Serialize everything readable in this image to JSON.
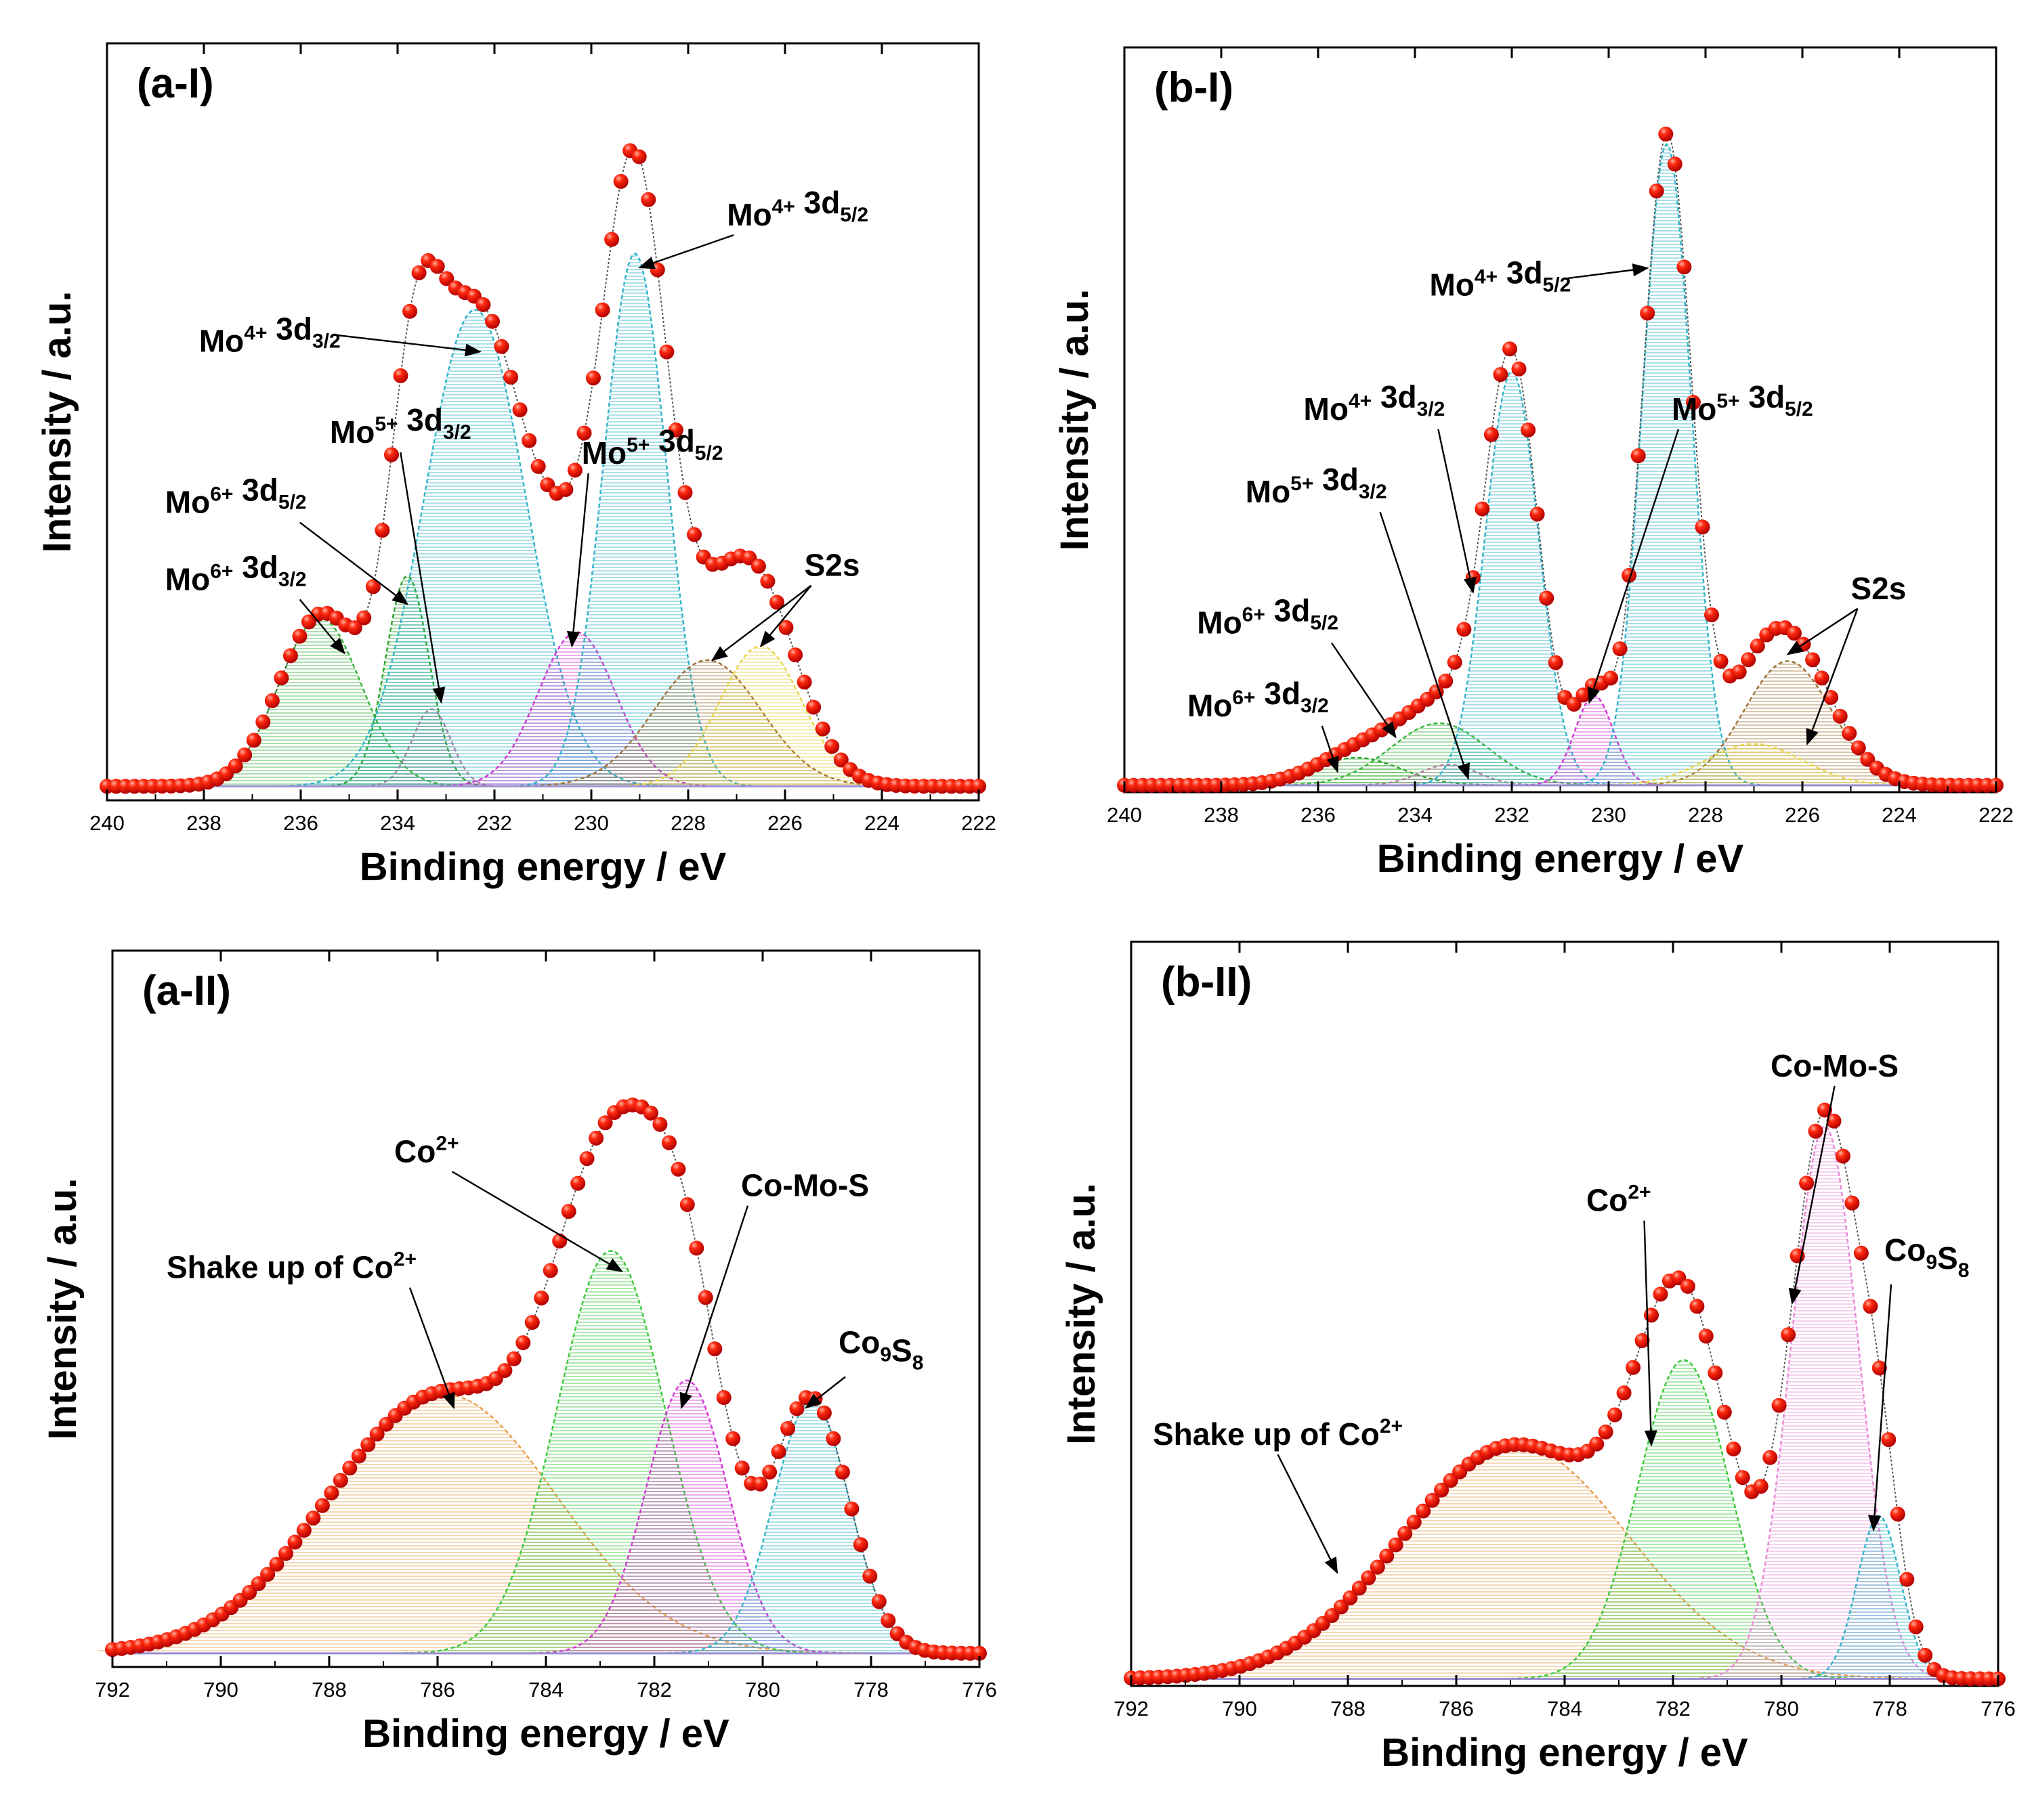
{
  "chart_data": [
    {
      "id": "a1",
      "type": "line",
      "panel_label": "(a-I)",
      "xlabel": "Binding energy / eV",
      "ylabel": "Intensity / a.u.",
      "xlim": [
        240,
        222
      ],
      "ylim": [
        0,
        1.08
      ],
      "xticks": [
        240,
        238,
        236,
        234,
        232,
        230,
        228,
        226,
        224,
        222
      ],
      "xtick_labels": [
        "240",
        "238",
        "236",
        "234",
        "232",
        "230",
        "228",
        "226",
        "224",
        "222"
      ],
      "baseline": 0.02,
      "components": [
        {
          "name": "Mo6+ 3d3/2",
          "center": 235.6,
          "height": 0.24,
          "width": 0.85,
          "color": "#3db53d"
        },
        {
          "name": "Mo6+ 3d5/2",
          "center": 233.8,
          "height": 0.3,
          "width": 0.45,
          "color": "#2fa52f"
        },
        {
          "name": "Mo5+ 3d3/2",
          "center": 233.3,
          "height": 0.11,
          "width": 0.4,
          "color": "#b080a0"
        },
        {
          "name": "Mo4+ 3d3/2",
          "center": 232.4,
          "height": 0.68,
          "width": 1.05,
          "color": "#33b5c8"
        },
        {
          "name": "Mo5+ 3d5/2",
          "center": 230.3,
          "height": 0.22,
          "width": 0.8,
          "color": "#d23ad2"
        },
        {
          "name": "Mo4+ 3d5/2",
          "center": 229.1,
          "height": 0.76,
          "width": 0.65,
          "color": "#33b5c8"
        },
        {
          "name": "S2s a",
          "center": 227.6,
          "height": 0.18,
          "width": 1.1,
          "color": "#a0743a"
        },
        {
          "name": "S2s b",
          "center": 226.5,
          "height": 0.2,
          "width": 0.85,
          "color": "#e8d44a"
        }
      ],
      "annotations": [
        {
          "base": "Mo",
          "sup": "4+",
          "mid": " 3d",
          "sub": "5/2",
          "text_xy": [
            227.2,
            0.82
          ],
          "arrow_to": [
            229.0,
            0.76
          ]
        },
        {
          "base": "Mo",
          "sup": "4+",
          "mid": " 3d",
          "sub": "3/2",
          "text_xy": [
            238.1,
            0.64
          ],
          "arrow_to": [
            232.3,
            0.64
          ]
        },
        {
          "base": "Mo",
          "sup": "5+",
          "mid": " 3d",
          "sub": "3/2",
          "text_xy": [
            235.4,
            0.51
          ],
          "arrow_to": [
            233.1,
            0.14
          ]
        },
        {
          "base": "Mo",
          "sup": "6+",
          "mid": " 3d",
          "sub": "5/2",
          "text_xy": [
            238.8,
            0.41
          ],
          "arrow_to": [
            233.8,
            0.28
          ]
        },
        {
          "base": "Mo",
          "sup": "6+",
          "mid": " 3d",
          "sub": "3/2",
          "text_xy": [
            238.8,
            0.3
          ],
          "arrow_to": [
            235.1,
            0.21
          ]
        },
        {
          "base": "Mo",
          "sup": "5+",
          "mid": " 3d",
          "sub": "5/2",
          "text_xy": [
            230.2,
            0.48
          ],
          "arrow_to": [
            230.4,
            0.22
          ]
        },
        {
          "base": "S2s",
          "sup": "",
          "mid": "",
          "sub": "",
          "text_xy": [
            225.6,
            0.32
          ],
          "arrow_to": [
            227.5,
            0.2
          ],
          "arrow_to2": [
            226.5,
            0.22
          ]
        }
      ]
    },
    {
      "id": "b1",
      "type": "line",
      "panel_label": "(b-I)",
      "xlabel": "Binding energy / eV",
      "ylabel": "Intensity / a.u.",
      "xlim": [
        240,
        222
      ],
      "ylim": [
        0,
        1.08
      ],
      "xticks": [
        240,
        238,
        236,
        234,
        232,
        230,
        228,
        226,
        224,
        222
      ],
      "xtick_labels": [
        "240",
        "238",
        "236",
        "234",
        "232",
        "230",
        "228",
        "226",
        "224",
        "222"
      ],
      "baseline": 0.01,
      "components": [
        {
          "name": "Mo6+ 3d3/2",
          "center": 235.2,
          "height": 0.04,
          "width": 0.9,
          "color": "#2fa52f"
        },
        {
          "name": "Mo6+ 3d5/2",
          "center": 233.5,
          "height": 0.09,
          "width": 1.0,
          "color": "#3db53d"
        },
        {
          "name": "Mo5+ 3d3/2",
          "center": 233.3,
          "height": 0.03,
          "width": 0.6,
          "color": "#b080a0"
        },
        {
          "name": "Mo4+ 3d3/2",
          "center": 232.0,
          "height": 0.6,
          "width": 0.55,
          "color": "#33b5c8"
        },
        {
          "name": "Mo5+ 3d5/2",
          "center": 230.3,
          "height": 0.13,
          "width": 0.4,
          "color": "#d23ad2"
        },
        {
          "name": "Mo4+ 3d5/2",
          "center": 228.8,
          "height": 0.93,
          "width": 0.5,
          "color": "#33b5c8"
        },
        {
          "name": "S2s a",
          "center": 226.3,
          "height": 0.18,
          "width": 0.9,
          "color": "#a0743a"
        },
        {
          "name": "S2s b",
          "center": 227.0,
          "height": 0.06,
          "width": 1.0,
          "color": "#e8d44a"
        }
      ],
      "annotations": [
        {
          "base": "Mo",
          "sup": "4+",
          "mid": " 3d",
          "sub": "5/2",
          "text_xy": [
            233.7,
            0.72
          ],
          "arrow_to": [
            229.2,
            0.76
          ]
        },
        {
          "base": "Mo",
          "sup": "4+",
          "mid": " 3d",
          "sub": "3/2",
          "text_xy": [
            236.3,
            0.54
          ],
          "arrow_to": [
            232.8,
            0.29
          ]
        },
        {
          "base": "Mo",
          "sup": "5+",
          "mid": " 3d",
          "sub": "3/2",
          "text_xy": [
            237.5,
            0.42
          ],
          "arrow_to": [
            232.9,
            0.02
          ]
        },
        {
          "base": "Mo",
          "sup": "6+",
          "mid": " 3d",
          "sub": "5/2",
          "text_xy": [
            238.5,
            0.23
          ],
          "arrow_to": [
            234.4,
            0.08
          ]
        },
        {
          "base": "Mo",
          "sup": "6+",
          "mid": " 3d",
          "sub": "3/2",
          "text_xy": [
            238.7,
            0.11
          ],
          "arrow_to": [
            235.6,
            0.03
          ]
        },
        {
          "base": "Mo",
          "sup": "5+",
          "mid": " 3d",
          "sub": "5/2",
          "text_xy": [
            228.7,
            0.54
          ],
          "arrow_to": [
            230.4,
            0.13
          ]
        },
        {
          "base": "S2s",
          "sup": "",
          "mid": "",
          "sub": "",
          "text_xy": [
            225.0,
            0.28
          ],
          "arrow_to": [
            226.3,
            0.2
          ],
          "arrow_to2": [
            225.9,
            0.07
          ]
        }
      ]
    },
    {
      "id": "a2",
      "type": "line",
      "panel_label": "(a-II)",
      "xlabel": "Binding energy / eV",
      "ylabel": "Intensity / a.u.",
      "xlim": [
        792,
        776
      ],
      "ylim": [
        0,
        1.05
      ],
      "xticks": [
        792,
        790,
        788,
        786,
        784,
        782,
        780,
        778,
        776
      ],
      "xtick_labels": [
        "792",
        "790",
        "788",
        "786",
        "784",
        "782",
        "780",
        "778",
        "776"
      ],
      "baseline": 0.02,
      "components": [
        {
          "name": "Shake up of Co2+",
          "center": 785.9,
          "height": 0.38,
          "width": 2.1,
          "color": "#e8a050"
        },
        {
          "name": "Co2+",
          "center": 782.8,
          "height": 0.59,
          "width": 1.0,
          "color": "#3ec83e"
        },
        {
          "name": "Co-Mo-S",
          "center": 781.4,
          "height": 0.4,
          "width": 0.75,
          "color": "#d23ad2"
        },
        {
          "name": "Co9S8",
          "center": 779.1,
          "height": 0.37,
          "width": 0.7,
          "color": "#33b5c8"
        }
      ],
      "annotations": [
        {
          "base": "Shake up of Co",
          "sup": "2+",
          "mid": "",
          "sub": "",
          "text_xy": [
            791.0,
            0.57
          ],
          "arrow_to": [
            785.7,
            0.38
          ]
        },
        {
          "base": "Co",
          "sup": "2+",
          "mid": "",
          "sub": "",
          "text_xy": [
            786.8,
            0.74
          ],
          "arrow_to": [
            782.6,
            0.58
          ]
        },
        {
          "base": "Co-Mo-S",
          "sup": "",
          "mid": "",
          "sub": "",
          "text_xy": [
            780.4,
            0.69
          ],
          "arrow_to": [
            781.5,
            0.38
          ]
        },
        {
          "base": "Co",
          "sup": "",
          "mid": "",
          "sub": "9",
          "tail": "S",
          "tail_sub": "8",
          "text_xy": [
            778.6,
            0.46
          ],
          "arrow_to": [
            779.2,
            0.38
          ]
        }
      ]
    },
    {
      "id": "b2",
      "type": "line",
      "panel_label": "(b-II)",
      "xlabel": "Binding energy / eV",
      "ylabel": "Intensity / a.u.",
      "xlim": [
        792,
        776
      ],
      "ylim": [
        0,
        1.05
      ],
      "xticks": [
        792,
        790,
        788,
        786,
        784,
        782,
        780,
        778,
        776
      ],
      "xtick_labels": [
        "792",
        "790",
        "788",
        "786",
        "784",
        "782",
        "780",
        "778",
        "776"
      ],
      "baseline": 0.01,
      "components": [
        {
          "name": "Shake up of Co2+",
          "center": 784.9,
          "height": 0.33,
          "width": 2.1,
          "color": "#e8a050"
        },
        {
          "name": "Co2+",
          "center": 781.8,
          "height": 0.45,
          "width": 0.85,
          "color": "#3ec83e"
        },
        {
          "name": "Co-Mo-S",
          "center": 779.2,
          "height": 0.78,
          "width": 0.62,
          "color": "#e88ad8"
        },
        {
          "name": "Co9S8",
          "center": 778.2,
          "height": 0.23,
          "width": 0.4,
          "color": "#33b5c8"
        }
      ],
      "annotations": [
        {
          "base": "Shake up of Co",
          "sup": "2+",
          "mid": "",
          "sub": "",
          "text_xy": [
            791.6,
            0.34
          ],
          "arrow_to": [
            788.2,
            0.16
          ]
        },
        {
          "base": "Co",
          "sup": "2+",
          "mid": "",
          "sub": "",
          "text_xy": [
            783.6,
            0.67
          ],
          "arrow_to": [
            782.4,
            0.34
          ]
        },
        {
          "base": "Co-Mo-S",
          "sup": "",
          "mid": "",
          "sub": "",
          "text_xy": [
            780.2,
            0.86
          ],
          "arrow_to": [
            779.8,
            0.54
          ]
        },
        {
          "base": "Co",
          "sup": "",
          "mid": "",
          "sub": "9",
          "tail": "S",
          "tail_sub": "8",
          "text_xy": [
            778.1,
            0.6
          ],
          "arrow_to": [
            778.3,
            0.22
          ]
        }
      ]
    }
  ]
}
